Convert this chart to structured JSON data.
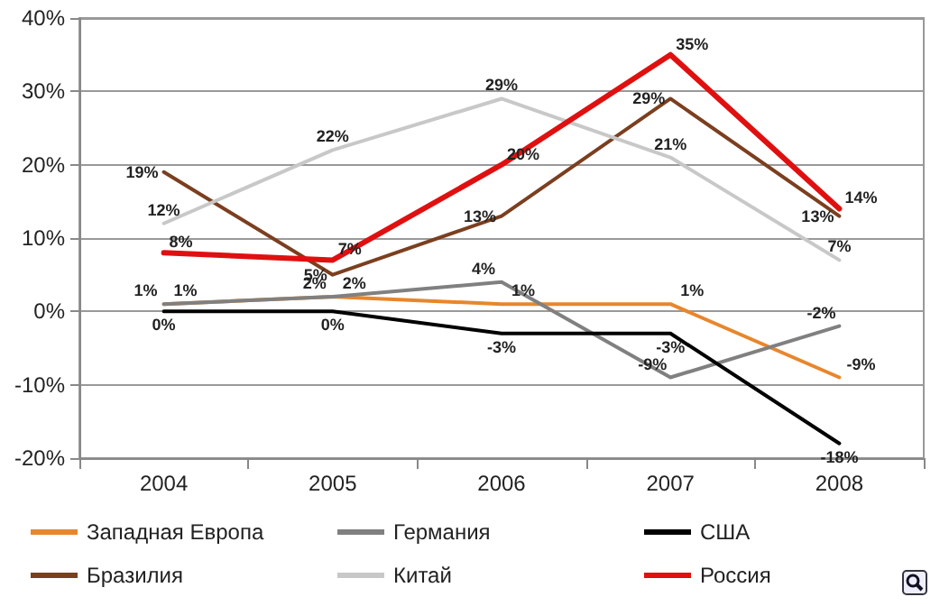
{
  "chart_data": {
    "type": "line",
    "categories": [
      "2004",
      "2005",
      "2006",
      "2007",
      "2008"
    ],
    "series": [
      {
        "name": "Западная Европа",
        "color": "#e8862c",
        "values": [
          1,
          2,
          1,
          1,
          -9
        ],
        "value_labels": [
          "1%",
          "2%",
          "1%",
          "1%",
          "-9%"
        ]
      },
      {
        "name": "Германия",
        "color": "#808080",
        "values": [
          1,
          2,
          4,
          -9,
          -2
        ],
        "value_labels": [
          "1%",
          "2%",
          "4%",
          "-9%",
          "-2%"
        ]
      },
      {
        "name": "США",
        "color": "#000000",
        "values": [
          0,
          0,
          -3,
          -3,
          -18
        ],
        "value_labels": [
          "0%",
          "0%",
          "-3%",
          "-3%",
          "-18%"
        ]
      },
      {
        "name": "Бразилия",
        "color": "#7b3f1f",
        "values": [
          19,
          5,
          13,
          29,
          13
        ],
        "value_labels": [
          "19%",
          "5%",
          "13%",
          "29%",
          "13%"
        ]
      },
      {
        "name": "Китай",
        "color": "#c8c8c8",
        "values": [
          12,
          22,
          29,
          21,
          7
        ],
        "value_labels": [
          "12%",
          "22%",
          "29%",
          "21%",
          "7%"
        ]
      },
      {
        "name": "Россия",
        "color": "#e01010",
        "values": [
          8,
          7,
          20,
          35,
          14
        ],
        "value_labels": [
          "8%",
          "7%",
          "20%",
          "35%",
          "14%"
        ]
      }
    ],
    "ylim": [
      -20,
      40
    ],
    "yticks": [
      {
        "value": -20,
        "label": "-20%"
      },
      {
        "value": -10,
        "label": "-10%"
      },
      {
        "value": 0,
        "label": "0%"
      },
      {
        "value": 10,
        "label": "10%"
      },
      {
        "value": 20,
        "label": "20%"
      },
      {
        "value": 30,
        "label": "30%"
      },
      {
        "value": 40,
        "label": "40%"
      }
    ],
    "grid": "y",
    "legend": "bottom",
    "marker": "none",
    "line_style": "solid"
  }
}
